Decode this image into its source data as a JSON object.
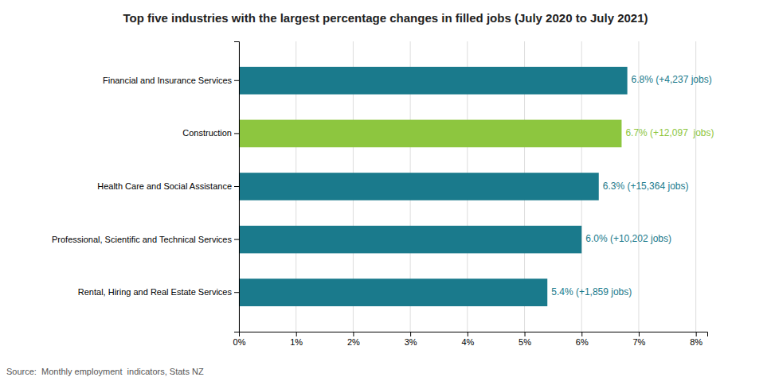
{
  "chart_data": {
    "type": "bar",
    "orientation": "horizontal",
    "title": "Top five industries with the largest percentage changes in filled jobs (July 2020 to July 2021)",
    "categories": [
      "Rental, Hiring and Real Estate Services",
      "Professional, Scientific and Technical Services",
      "Health Care and Social Assistance",
      "Construction",
      "Financial and Insurance Services"
    ],
    "values": [
      0.054,
      0.06,
      0.063,
      0.067,
      0.068
    ],
    "colors": [
      "#1A7A8C",
      "#1A7A8C",
      "#1A7A8C",
      "#8DC63F",
      "#1A7A8C"
    ],
    "data_labels": true,
    "value_labels": [
      "5.4% (+1,859 jobs)",
      "6.0% (+10,202 jobs)",
      "6.3% (+15,364 jobs)",
      "6.7% (+12,097  jobs)",
      "6.8% (+4,237 jobs)"
    ],
    "xlim": [
      0,
      0.082
    ],
    "xticks": [
      {
        "value": 0.0,
        "label": "0%"
      },
      {
        "value": 0.01,
        "label": "1%"
      },
      {
        "value": 0.02,
        "label": "2%"
      },
      {
        "value": 0.03,
        "label": "3%"
      },
      {
        "value": 0.04,
        "label": "4%"
      },
      {
        "value": 0.05,
        "label": "5%"
      },
      {
        "value": 0.06,
        "label": "6%"
      },
      {
        "value": 0.07,
        "label": "7%"
      },
      {
        "value": 0.08,
        "label": "8%"
      }
    ],
    "grid": true,
    "annotations": [
      "Source:  Monthly employment  indicators, Stats NZ"
    ]
  }
}
